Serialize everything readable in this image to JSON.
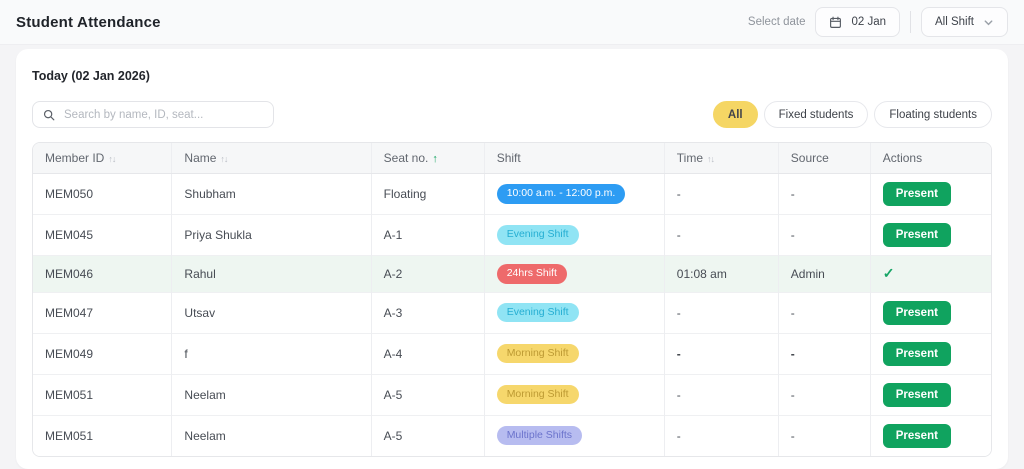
{
  "header": {
    "title": "Student Attendance",
    "select_date_label": "Select date",
    "date_value": "02 Jan",
    "shift_filter_value": "All Shift"
  },
  "card": {
    "today_label": "Today (02 Jan 2026)",
    "search_placeholder": "Search by name, ID, seat...",
    "filters": [
      {
        "label": "All",
        "active": true
      },
      {
        "label": "Fixed students",
        "active": false
      },
      {
        "label": "Floating students",
        "active": false
      }
    ]
  },
  "table": {
    "columns": [
      {
        "label": "Member ID",
        "sort": "both"
      },
      {
        "label": "Name",
        "sort": "both"
      },
      {
        "label": "Seat no.",
        "sort": "asc"
      },
      {
        "label": "Shift",
        "sort": "none"
      },
      {
        "label": "Time",
        "sort": "both"
      },
      {
        "label": "Source",
        "sort": "none"
      },
      {
        "label": "Actions",
        "sort": "none"
      }
    ],
    "rows": [
      {
        "member_id": "MEM050",
        "name": "Shubham",
        "seat": "Floating",
        "shift_label": "10:00 a.m. - 12:00 p.m.",
        "shift_type": "blue",
        "time": "-",
        "source": "-",
        "action": "present",
        "highlight": false,
        "bold_dash": false
      },
      {
        "member_id": "MEM045",
        "name": "Priya Shukla",
        "seat": "A-1",
        "shift_label": "Evening Shift",
        "shift_type": "cyan",
        "time": "-",
        "source": "-",
        "action": "present",
        "highlight": false,
        "bold_dash": false
      },
      {
        "member_id": "MEM046",
        "name": "Rahul",
        "seat": "A-2",
        "shift_label": "24hrs Shift",
        "shift_type": "red",
        "time": "01:08 am",
        "source": "Admin",
        "action": "check",
        "highlight": true,
        "bold_dash": false
      },
      {
        "member_id": "MEM047",
        "name": "Utsav",
        "seat": "A-3",
        "shift_label": "Evening Shift",
        "shift_type": "cyan",
        "time": "-",
        "source": "-",
        "action": "present",
        "highlight": false,
        "bold_dash": false
      },
      {
        "member_id": "MEM049",
        "name": "f",
        "seat": "A-4",
        "shift_label": "Morning Shift",
        "shift_type": "yellow",
        "time": "-",
        "source": "-",
        "action": "present",
        "highlight": false,
        "bold_dash": true
      },
      {
        "member_id": "MEM051",
        "name": "Neelam",
        "seat": "A-5",
        "shift_label": "Morning Shift",
        "shift_type": "yellow",
        "time": "-",
        "source": "-",
        "action": "present",
        "highlight": false,
        "bold_dash": false
      },
      {
        "member_id": "MEM051",
        "name": "Neelam",
        "seat": "A-5",
        "shift_label": "Multiple Shifts",
        "shift_type": "lavender",
        "time": "-",
        "source": "-",
        "action": "present",
        "highlight": false,
        "bold_dash": false
      }
    ],
    "present_label": "Present",
    "check_glyph": "✓",
    "sort_both_glyph": "↑↓",
    "sort_asc_glyph": "↑"
  },
  "colors": {
    "active_chip": "#F5D664",
    "present_green": "#10A35F",
    "check_green": "#17A566",
    "sort_active_green": "#19A565",
    "highlight_row": "#EEF6F1",
    "badge_blue_bg": "#2D9CF3",
    "badge_cyan_bg": "#90E4F4",
    "badge_cyan_text": "#25AED2",
    "badge_red_bg": "#EE6A6B",
    "badge_yellow_bg": "#F6D76C",
    "badge_yellow_text": "#BD9A33",
    "badge_lavender_bg": "#B7BCF0",
    "badge_lavender_text": "#6B73CC"
  }
}
